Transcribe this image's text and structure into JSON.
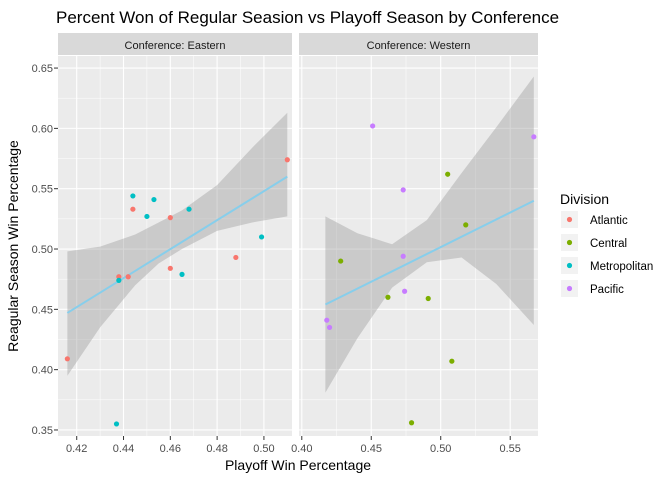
{
  "chart_data": {
    "type": "scatter",
    "title": "Percent Won of Regular Seasion vs Playoff Season by Conference",
    "xlabel": "Playoff Win Percentage",
    "ylabel": "Reagular Season Win Percentage",
    "ylim": [
      0.345,
      0.66
    ],
    "yticks": [
      0.35,
      0.4,
      0.45,
      0.5,
      0.55,
      0.6,
      0.65
    ],
    "ytick_labels": [
      "0.35",
      "0.40",
      "0.45",
      "0.50",
      "0.55",
      "0.60",
      "0.65"
    ],
    "grid": true,
    "legend": {
      "title": "Division",
      "placement": "right",
      "entries": [
        {
          "name": "Atlantic",
          "color": "#F8766D"
        },
        {
          "name": "Central",
          "color": "#7CAE00"
        },
        {
          "name": "Metropolitan",
          "color": "#00BFC4"
        },
        {
          "name": "Pacific",
          "color": "#C77CFF"
        }
      ]
    },
    "panels": [
      {
        "strip": "Conference: Eastern",
        "xlim": [
          0.412,
          0.512
        ],
        "xticks": [
          0.42,
          0.44,
          0.46,
          0.48,
          0.5
        ],
        "xtick_labels": [
          "0.42",
          "0.44",
          "0.46",
          "0.48",
          "0.50"
        ],
        "fit": {
          "x": [
            0.416,
            0.51
          ],
          "y": [
            0.447,
            0.56
          ]
        },
        "band": {
          "x": [
            0.416,
            0.43,
            0.445,
            0.455,
            0.465,
            0.48,
            0.495,
            0.51
          ],
          "lower": [
            0.395,
            0.435,
            0.47,
            0.488,
            0.5,
            0.515,
            0.522,
            0.527
          ],
          "upper": [
            0.498,
            0.502,
            0.512,
            0.522,
            0.532,
            0.553,
            0.584,
            0.613
          ]
        },
        "points": [
          {
            "division": "Atlantic",
            "x": 0.416,
            "y": 0.409
          },
          {
            "division": "Atlantic",
            "x": 0.438,
            "y": 0.477
          },
          {
            "division": "Atlantic",
            "x": 0.442,
            "y": 0.477
          },
          {
            "division": "Atlantic",
            "x": 0.444,
            "y": 0.533
          },
          {
            "division": "Atlantic",
            "x": 0.46,
            "y": 0.526
          },
          {
            "division": "Atlantic",
            "x": 0.46,
            "y": 0.484
          },
          {
            "division": "Atlantic",
            "x": 0.488,
            "y": 0.493
          },
          {
            "division": "Atlantic",
            "x": 0.51,
            "y": 0.574
          },
          {
            "division": "Metropolitan",
            "x": 0.437,
            "y": 0.355
          },
          {
            "division": "Metropolitan",
            "x": 0.438,
            "y": 0.474
          },
          {
            "division": "Metropolitan",
            "x": 0.444,
            "y": 0.544
          },
          {
            "division": "Metropolitan",
            "x": 0.45,
            "y": 0.527
          },
          {
            "division": "Metropolitan",
            "x": 0.453,
            "y": 0.541
          },
          {
            "division": "Metropolitan",
            "x": 0.465,
            "y": 0.479
          },
          {
            "division": "Metropolitan",
            "x": 0.468,
            "y": 0.533
          },
          {
            "division": "Metropolitan",
            "x": 0.499,
            "y": 0.51
          }
        ]
      },
      {
        "strip": "Conference: Western",
        "xlim": [
          0.398,
          0.57
        ],
        "xticks": [
          0.4,
          0.45,
          0.5,
          0.55
        ],
        "xtick_labels": [
          "0.40",
          "0.45",
          "0.50",
          "0.55"
        ],
        "fit": {
          "x": [
            0.417,
            0.567
          ],
          "y": [
            0.454,
            0.54
          ]
        },
        "band": {
          "x": [
            0.417,
            0.44,
            0.465,
            0.49,
            0.515,
            0.54,
            0.567
          ],
          "lower": [
            0.381,
            0.426,
            0.468,
            0.489,
            0.493,
            0.471,
            0.437
          ],
          "upper": [
            0.527,
            0.513,
            0.504,
            0.524,
            0.563,
            0.601,
            0.643
          ]
        },
        "points": [
          {
            "division": "Central",
            "x": 0.428,
            "y": 0.49
          },
          {
            "division": "Central",
            "x": 0.462,
            "y": 0.46
          },
          {
            "division": "Central",
            "x": 0.479,
            "y": 0.356
          },
          {
            "division": "Central",
            "x": 0.491,
            "y": 0.459
          },
          {
            "division": "Central",
            "x": 0.505,
            "y": 0.562
          },
          {
            "division": "Central",
            "x": 0.508,
            "y": 0.407
          },
          {
            "division": "Central",
            "x": 0.518,
            "y": 0.52
          },
          {
            "division": "Pacific",
            "x": 0.418,
            "y": 0.441
          },
          {
            "division": "Pacific",
            "x": 0.42,
            "y": 0.435
          },
          {
            "division": "Pacific",
            "x": 0.451,
            "y": 0.602
          },
          {
            "division": "Pacific",
            "x": 0.473,
            "y": 0.549
          },
          {
            "division": "Pacific",
            "x": 0.473,
            "y": 0.494
          },
          {
            "division": "Pacific",
            "x": 0.474,
            "y": 0.465
          },
          {
            "division": "Pacific",
            "x": 0.567,
            "y": 0.593
          }
        ]
      }
    ],
    "style": {
      "panel_bg": "#EBEBEB",
      "strip_bg": "#D9D9D9",
      "grid_color": "#FFFFFF",
      "band_color": "#999999",
      "fit_color": "#87CEEB",
      "text_color": "#4D4D4D"
    }
  }
}
